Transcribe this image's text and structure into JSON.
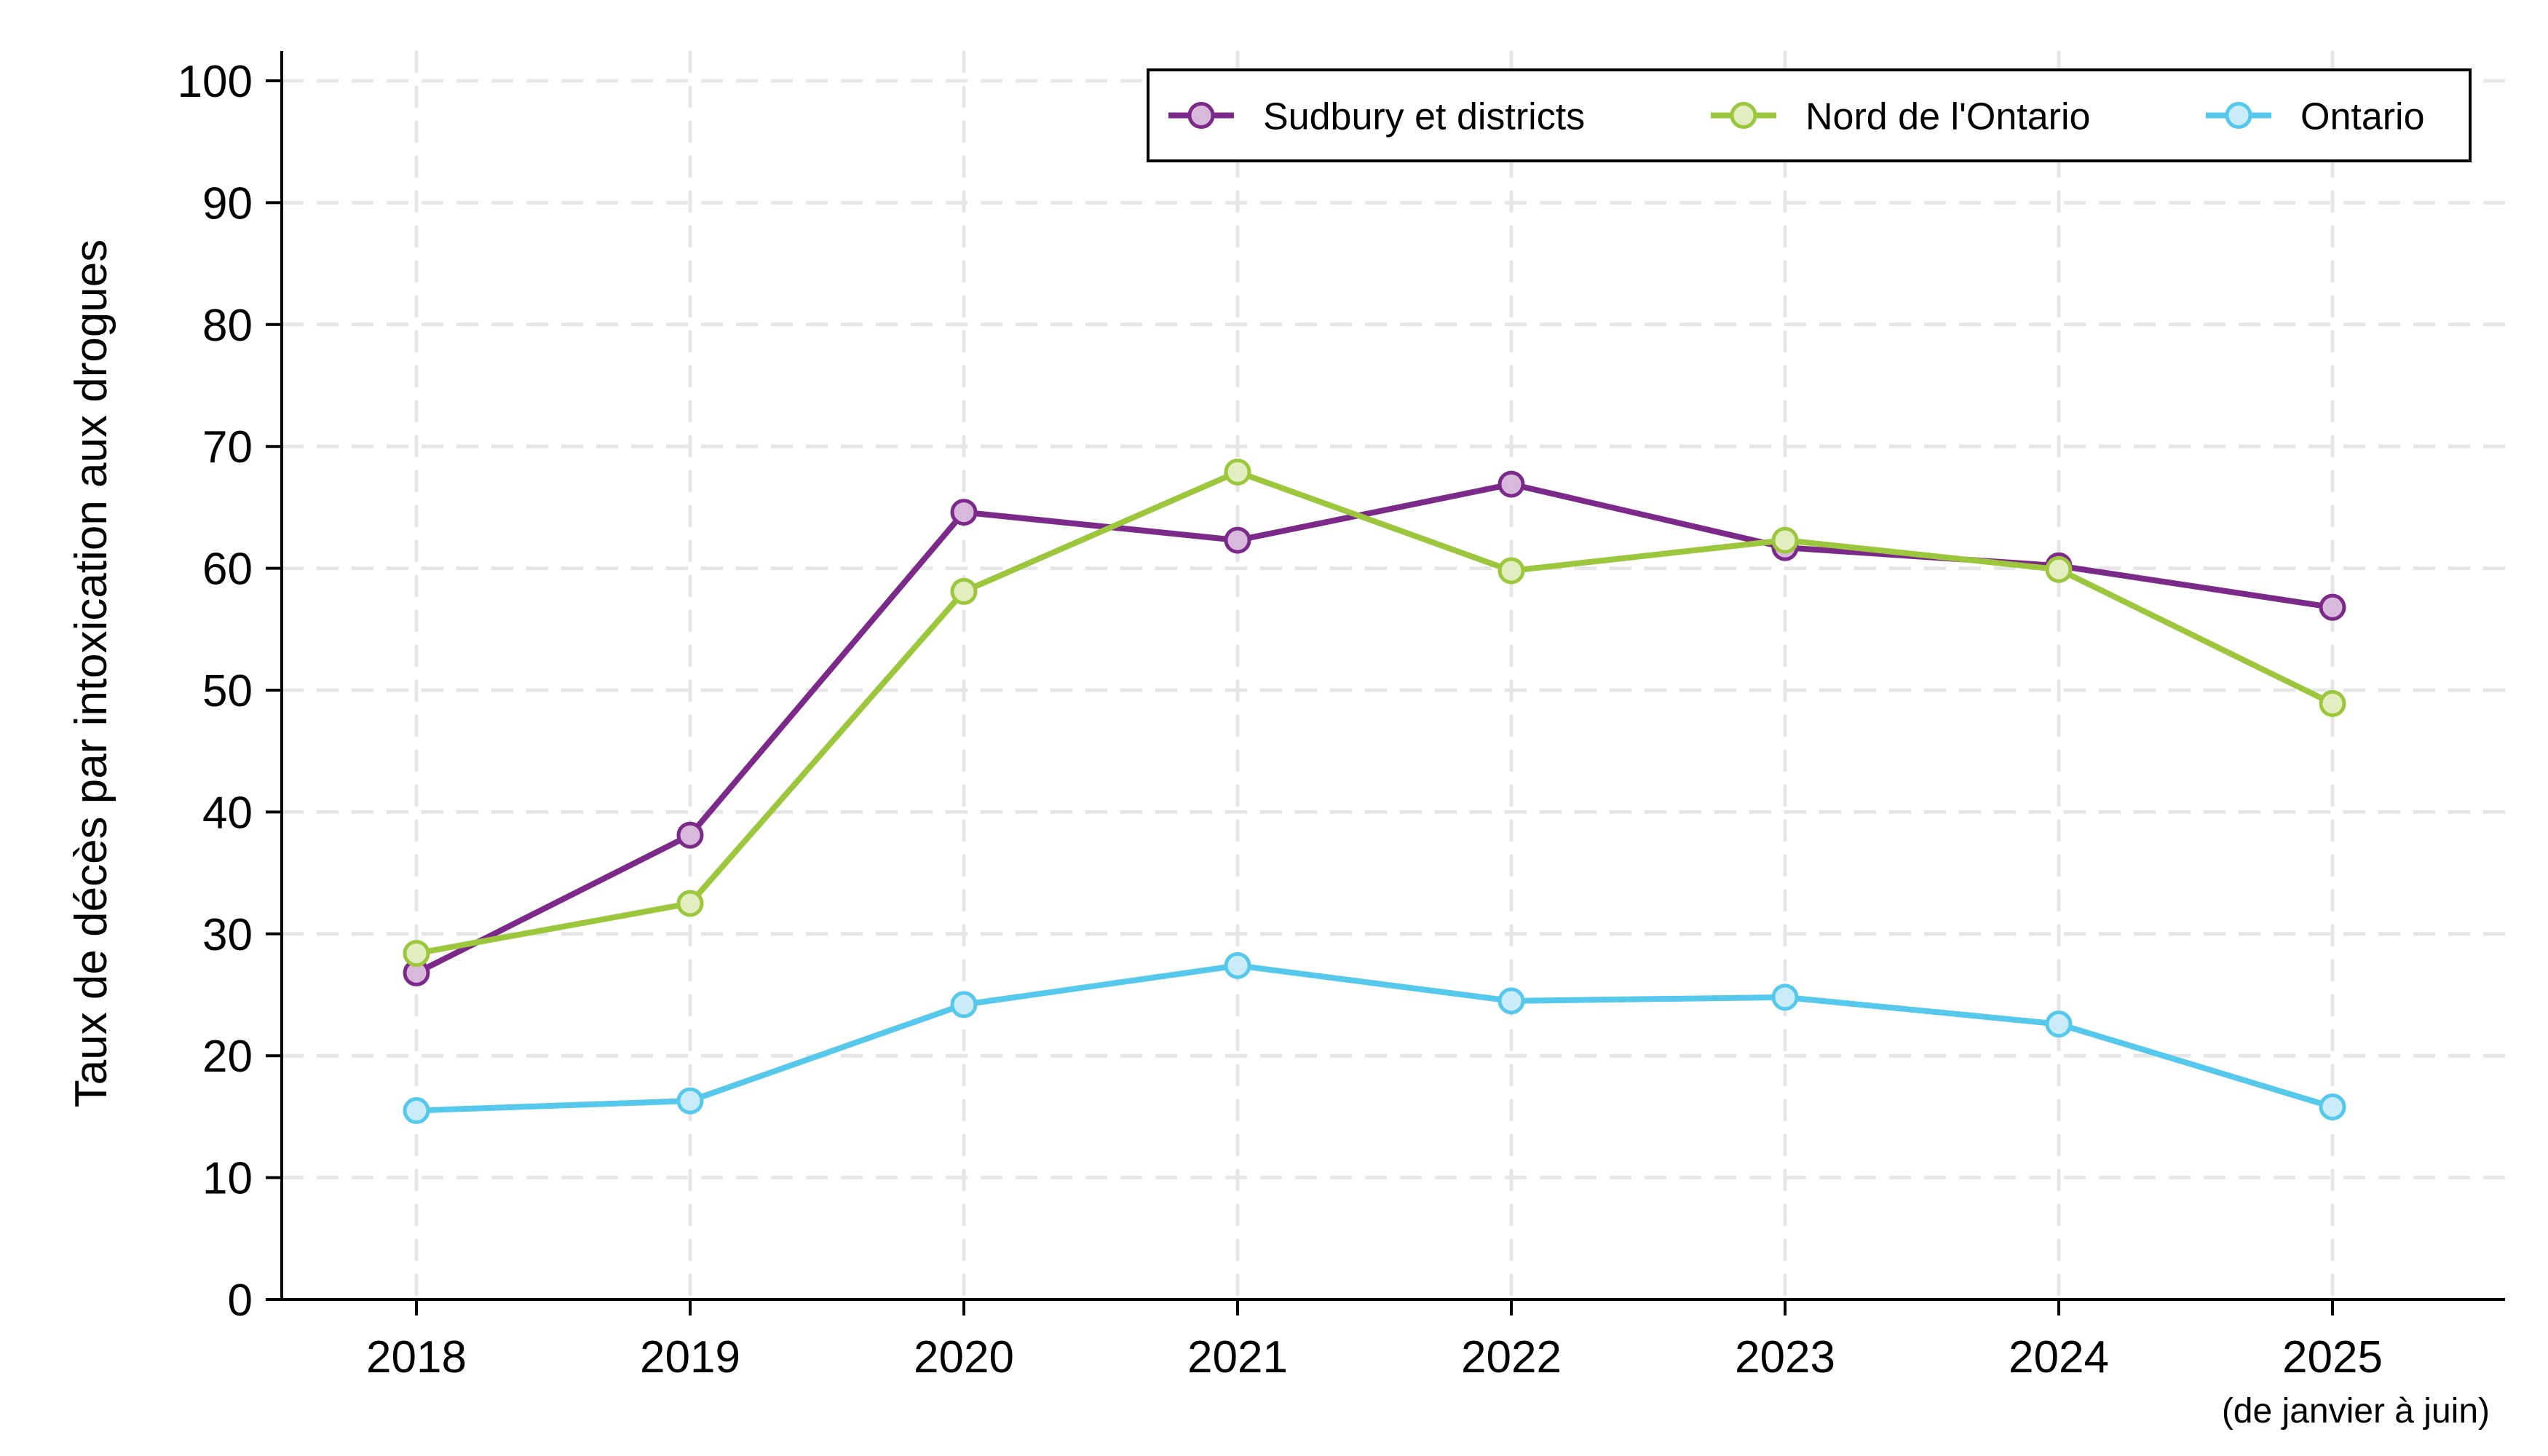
{
  "chart_data": {
    "type": "line",
    "title": "",
    "xlabel": "",
    "ylabel": "Taux de décès par intoxication aux drogues",
    "x": [
      "2018",
      "2019",
      "2020",
      "2021",
      "2022",
      "2023",
      "2024",
      "2025"
    ],
    "x_note": "(de janvier à juin)",
    "ylim": [
      0,
      100
    ],
    "yticks": [
      0,
      10,
      20,
      30,
      40,
      50,
      60,
      70,
      80,
      90,
      100
    ],
    "grid": true,
    "legend_position": "top-right",
    "series": [
      {
        "name": "Sudbury et districts",
        "color": "#7b2a8a",
        "fill": "#d8b9dc",
        "values": [
          26.8,
          38.1,
          64.6,
          62.3,
          66.9,
          61.7,
          60.2,
          56.8
        ]
      },
      {
        "name": "Nord de l'Ontario",
        "color": "#9cc63c",
        "fill": "#e2eec0",
        "values": [
          28.4,
          32.5,
          58.1,
          67.9,
          59.8,
          62.3,
          59.9,
          48.9
        ]
      },
      {
        "name": "Ontario",
        "color": "#55c8ec",
        "fill": "#c9ecf8",
        "values": [
          15.5,
          16.3,
          24.2,
          27.4,
          24.5,
          24.8,
          22.6,
          15.8
        ]
      }
    ]
  }
}
